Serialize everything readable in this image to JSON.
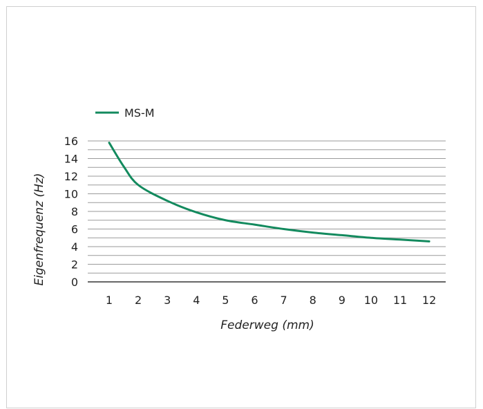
{
  "chart_data": {
    "type": "line",
    "xlabel": "Federweg (mm)",
    "ylabel": "Eigenfrequenz (Hz)",
    "xlim": [
      1,
      12
    ],
    "ylim": [
      0,
      16
    ],
    "x_ticks": [
      1,
      2,
      3,
      4,
      5,
      6,
      7,
      8,
      9,
      10,
      11,
      12
    ],
    "y_ticks": [
      0,
      2,
      4,
      6,
      8,
      10,
      12,
      14,
      16
    ],
    "grid": true,
    "legend_position": "top-left",
    "series": [
      {
        "name": "MS-M",
        "color": "#138a5e",
        "x": [
          1,
          1.5,
          2,
          3,
          4,
          5,
          6,
          7,
          8,
          9,
          10,
          11,
          12
        ],
        "y": [
          15.8,
          13.1,
          11.0,
          9.2,
          7.9,
          7.0,
          6.5,
          6.0,
          5.6,
          5.3,
          5.0,
          4.8,
          4.6
        ]
      }
    ]
  }
}
